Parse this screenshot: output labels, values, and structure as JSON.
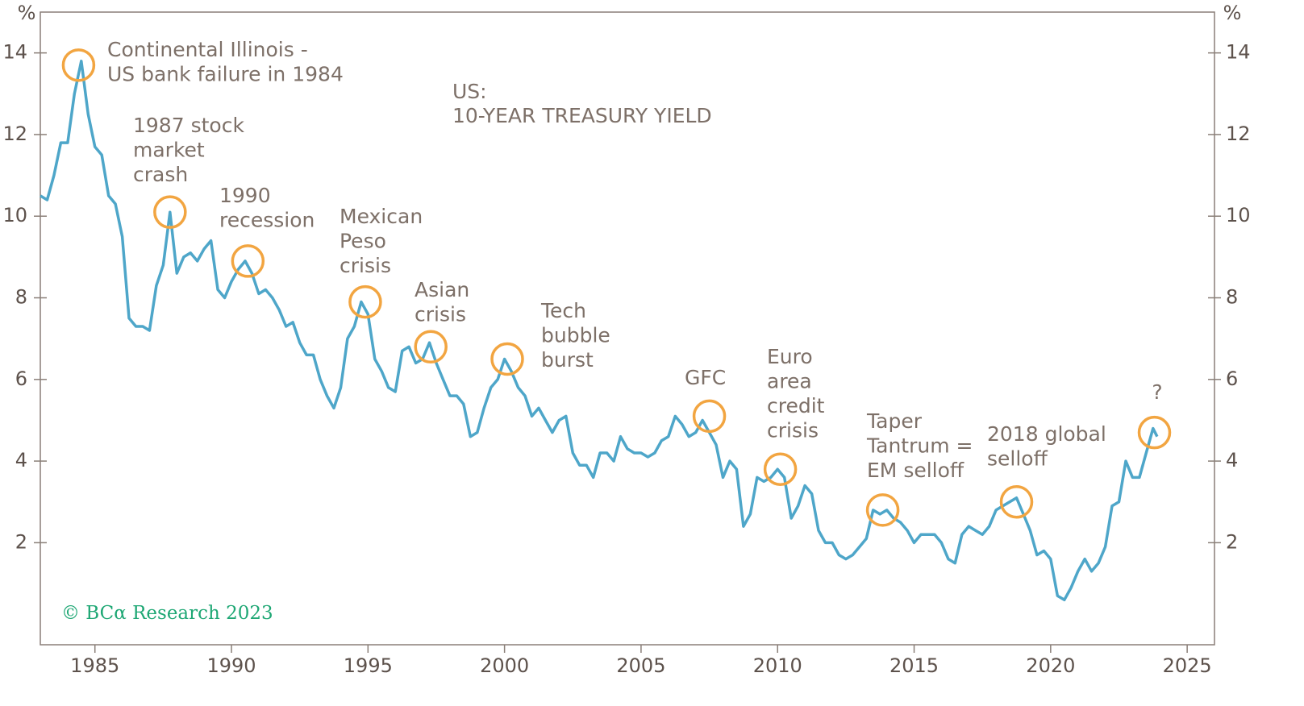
{
  "chart_data": {
    "type": "line",
    "title_lines": [
      "US:",
      "10-YEAR TREASURY YIELD"
    ],
    "y_unit": "%",
    "footer": "© BCα Research 2023",
    "x": [
      1983,
      1983.25,
      1983.5,
      1983.75,
      1984,
      1984.25,
      1984.5,
      1984.75,
      1985,
      1985.25,
      1985.5,
      1985.75,
      1986,
      1986.25,
      1986.5,
      1986.75,
      1987,
      1987.25,
      1987.5,
      1987.75,
      1988,
      1988.25,
      1988.5,
      1988.75,
      1989,
      1989.25,
      1989.5,
      1989.75,
      1990,
      1990.25,
      1990.5,
      1990.75,
      1991,
      1991.25,
      1991.5,
      1991.75,
      1992,
      1992.25,
      1992.5,
      1992.75,
      1993,
      1993.25,
      1993.5,
      1993.75,
      1994,
      1994.25,
      1994.5,
      1994.75,
      1995,
      1995.25,
      1995.5,
      1995.75,
      1996,
      1996.25,
      1996.5,
      1996.75,
      1997,
      1997.25,
      1997.5,
      1997.75,
      1998,
      1998.25,
      1998.5,
      1998.75,
      1999,
      1999.25,
      1999.5,
      1999.75,
      2000,
      2000.25,
      2000.5,
      2000.75,
      2001,
      2001.25,
      2001.5,
      2001.75,
      2002,
      2002.25,
      2002.5,
      2002.75,
      2003,
      2003.25,
      2003.5,
      2003.75,
      2004,
      2004.25,
      2004.5,
      2004.75,
      2005,
      2005.25,
      2005.5,
      2005.75,
      2006,
      2006.25,
      2006.5,
      2006.75,
      2007,
      2007.25,
      2007.5,
      2007.75,
      2008,
      2008.25,
      2008.5,
      2008.75,
      2009,
      2009.25,
      2009.5,
      2009.75,
      2010,
      2010.25,
      2010.5,
      2010.75,
      2011,
      2011.25,
      2011.5,
      2011.75,
      2012,
      2012.25,
      2012.5,
      2012.75,
      2013,
      2013.25,
      2013.5,
      2013.75,
      2014,
      2014.25,
      2014.5,
      2014.75,
      2015,
      2015.25,
      2015.5,
      2015.75,
      2016,
      2016.25,
      2016.5,
      2016.75,
      2017,
      2017.25,
      2017.5,
      2017.75,
      2018,
      2018.25,
      2018.5,
      2018.75,
      2019,
      2019.25,
      2019.5,
      2019.75,
      2020,
      2020.25,
      2020.5,
      2020.75,
      2021,
      2021.25,
      2021.5,
      2021.75,
      2022,
      2022.25,
      2022.5,
      2022.75,
      2023,
      2023.25,
      2023.5,
      2023.75,
      2023.9
    ],
    "series": [
      {
        "name": "US 10-year Treasury yield",
        "color": "#4ea6c9",
        "values": [
          10.5,
          10.4,
          11.0,
          11.8,
          11.8,
          13.0,
          13.8,
          12.5,
          11.7,
          11.5,
          10.5,
          10.3,
          9.5,
          7.5,
          7.3,
          7.3,
          7.2,
          8.3,
          8.8,
          10.1,
          8.6,
          9.0,
          9.1,
          8.9,
          9.2,
          9.4,
          8.2,
          8.0,
          8.4,
          8.7,
          8.9,
          8.6,
          8.1,
          8.2,
          8.0,
          7.7,
          7.3,
          7.4,
          6.9,
          6.6,
          6.6,
          6.0,
          5.6,
          5.3,
          5.8,
          7.0,
          7.3,
          7.9,
          7.6,
          6.5,
          6.2,
          5.8,
          5.7,
          6.7,
          6.8,
          6.4,
          6.5,
          6.9,
          6.4,
          6.0,
          5.6,
          5.6,
          5.4,
          4.6,
          4.7,
          5.3,
          5.8,
          6.0,
          6.5,
          6.2,
          5.8,
          5.6,
          5.1,
          5.3,
          5.0,
          4.7,
          5.0,
          5.1,
          4.2,
          3.9,
          3.9,
          3.6,
          4.2,
          4.2,
          4.0,
          4.6,
          4.3,
          4.2,
          4.2,
          4.1,
          4.2,
          4.5,
          4.6,
          5.1,
          4.9,
          4.6,
          4.7,
          5.0,
          4.7,
          4.4,
          3.6,
          4.0,
          3.8,
          2.4,
          2.7,
          3.6,
          3.5,
          3.6,
          3.8,
          3.6,
          2.6,
          2.9,
          3.4,
          3.2,
          2.3,
          2.0,
          2.0,
          1.7,
          1.6,
          1.7,
          1.9,
          2.1,
          2.8,
          2.7,
          2.8,
          2.6,
          2.5,
          2.3,
          2.0,
          2.2,
          2.2,
          2.2,
          2.0,
          1.6,
          1.5,
          2.2,
          2.4,
          2.3,
          2.2,
          2.4,
          2.8,
          2.9,
          3.0,
          3.1,
          2.7,
          2.3,
          1.7,
          1.8,
          1.6,
          0.7,
          0.6,
          0.9,
          1.3,
          1.6,
          1.3,
          1.5,
          1.9,
          2.9,
          3.0,
          4.0,
          3.6,
          3.6,
          4.2,
          4.8,
          4.6
        ]
      }
    ],
    "xlim": [
      1983,
      2026
    ],
    "xticks": [
      1985,
      1990,
      1995,
      2000,
      2005,
      2010,
      2015,
      2020,
      2025
    ],
    "ylim": [
      -0.5,
      15
    ],
    "yticks": [
      2,
      4,
      6,
      8,
      10,
      12,
      14
    ],
    "annotations": [
      {
        "lines": [
          "Continental Illinois -",
          "US bank failure in 1984"
        ],
        "x": 1984.4,
        "y": 13.7
      },
      {
        "lines": [
          "1987 stock",
          "market",
          "crash"
        ],
        "x": 1987.75,
        "y": 10.1
      },
      {
        "lines": [
          "1990",
          "recession"
        ],
        "x": 1990.6,
        "y": 8.9
      },
      {
        "lines": [
          "Mexican",
          "Peso",
          "crisis"
        ],
        "x": 1994.9,
        "y": 7.9
      },
      {
        "lines": [
          "Asian",
          "crisis"
        ],
        "x": 1997.3,
        "y": 6.8
      },
      {
        "lines": [
          "Tech",
          "bubble",
          "burst"
        ],
        "x": 2000.1,
        "y": 6.5
      },
      {
        "lines": [
          "GFC"
        ],
        "x": 2007.5,
        "y": 5.1
      },
      {
        "lines": [
          "Euro",
          "area",
          "credit",
          "crisis"
        ],
        "x": 2010.1,
        "y": 3.8
      },
      {
        "lines": [
          "Taper",
          "Tantrum =",
          "EM selloff"
        ],
        "x": 2013.85,
        "y": 2.8
      },
      {
        "lines": [
          "2018 global",
          "selloff"
        ],
        "x": 2018.75,
        "y": 3.0
      },
      {
        "lines": [
          "?"
        ],
        "x": 2023.8,
        "y": 4.7
      }
    ],
    "annotation_color": "#f2a541"
  }
}
